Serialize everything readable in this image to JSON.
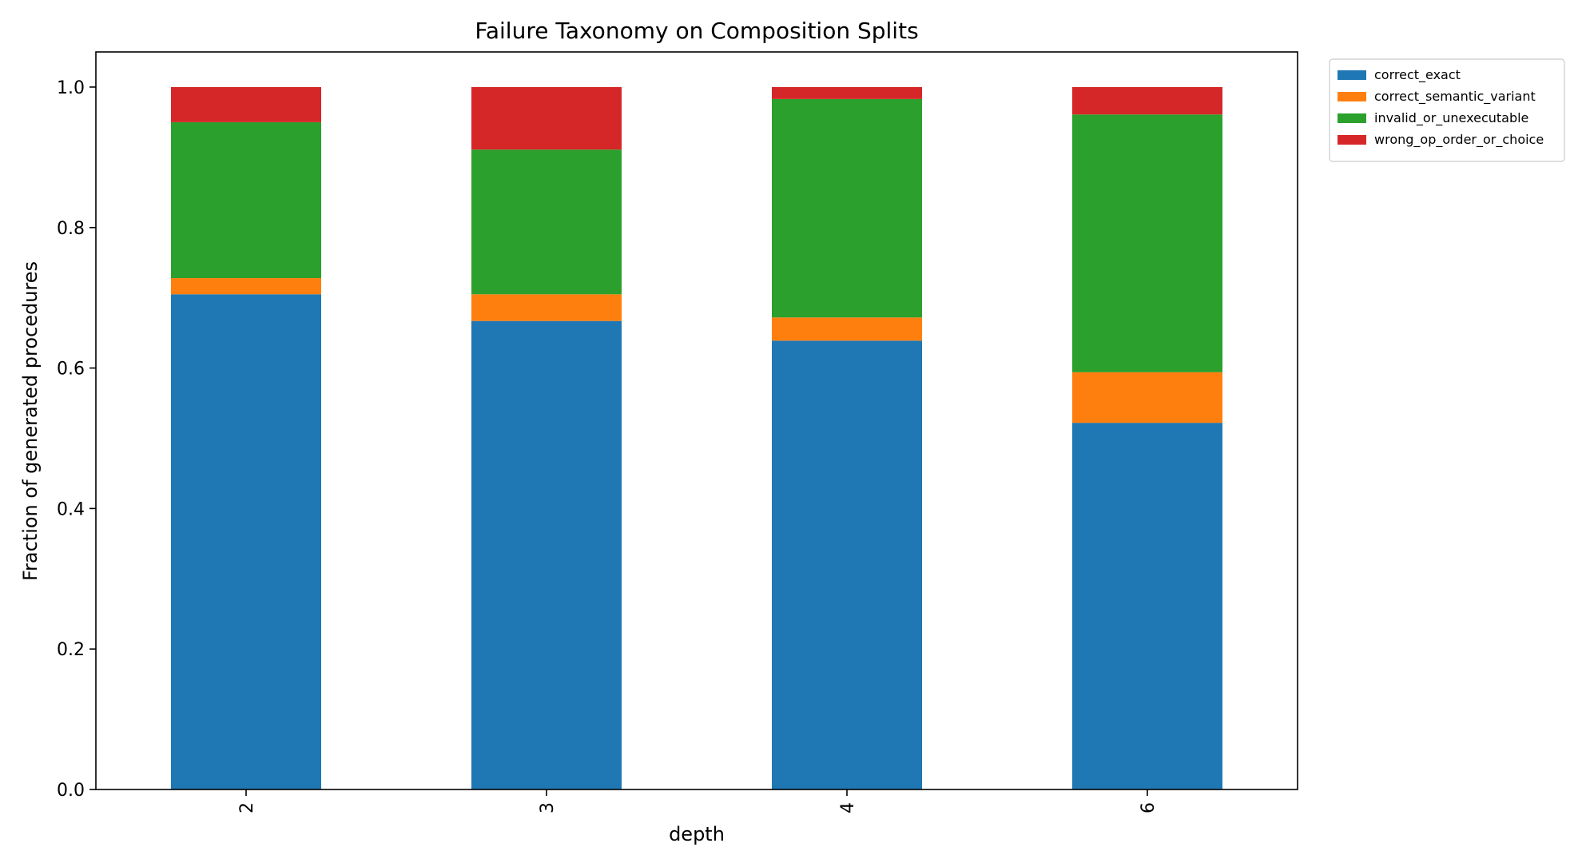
{
  "chart_data": {
    "type": "bar",
    "stacked": true,
    "title": "Failure Taxonomy on Composition Splits",
    "xlabel": "depth",
    "ylabel": "Fraction of generated procedures",
    "categories": [
      "2",
      "3",
      "4",
      "6"
    ],
    "ylim": [
      0,
      1.05
    ],
    "yticks": [
      "0.0",
      "0.2",
      "0.4",
      "0.6",
      "0.8",
      "1.0"
    ],
    "grid": false,
    "legend_position": "outside-top-right",
    "series": [
      {
        "name": "correct_exact",
        "color": "#1f77b4",
        "values": [
          0.705,
          0.667,
          0.639,
          0.522
        ]
      },
      {
        "name": "correct_semantic_variant",
        "color": "#ff7f0e",
        "values": [
          0.023,
          0.038,
          0.033,
          0.072
        ]
      },
      {
        "name": "invalid_or_unexecutable",
        "color": "#2ca02c",
        "values": [
          0.222,
          0.206,
          0.311,
          0.367
        ]
      },
      {
        "name": "wrong_op_order_or_choice",
        "color": "#d62728",
        "values": [
          0.05,
          0.089,
          0.017,
          0.039
        ]
      }
    ]
  }
}
